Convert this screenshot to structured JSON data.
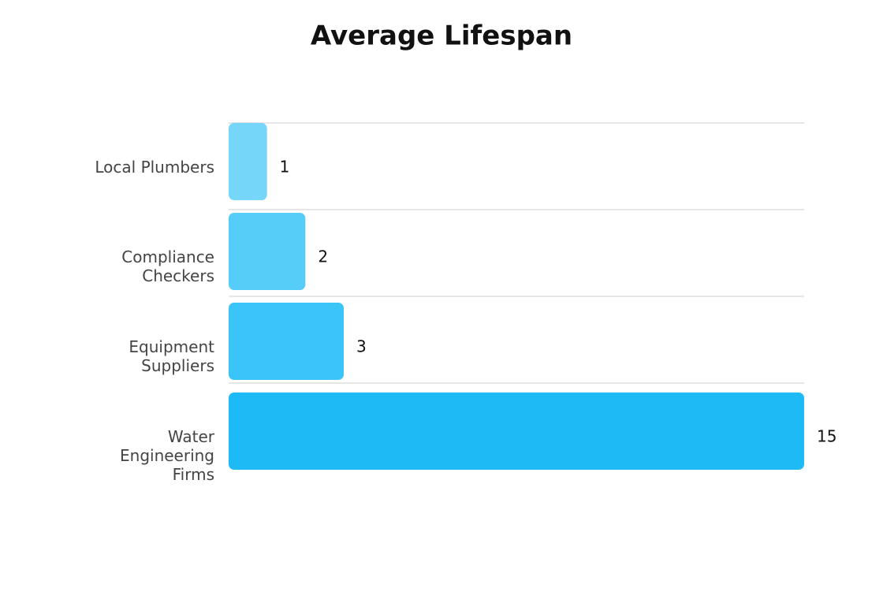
{
  "chart_data": {
    "type": "bar",
    "orientation": "horizontal",
    "title": "Average Lifespan",
    "categories": [
      "Local Plumbers",
      "Compliance Checkers",
      "Equipment Suppliers",
      "Water Engineering Firms"
    ],
    "values": [
      1,
      2,
      3,
      15
    ],
    "colors": [
      "#76d6fa",
      "#56cdf9",
      "#3ac4f8",
      "#1dbaf5"
    ],
    "xlim": [
      0,
      15
    ]
  }
}
